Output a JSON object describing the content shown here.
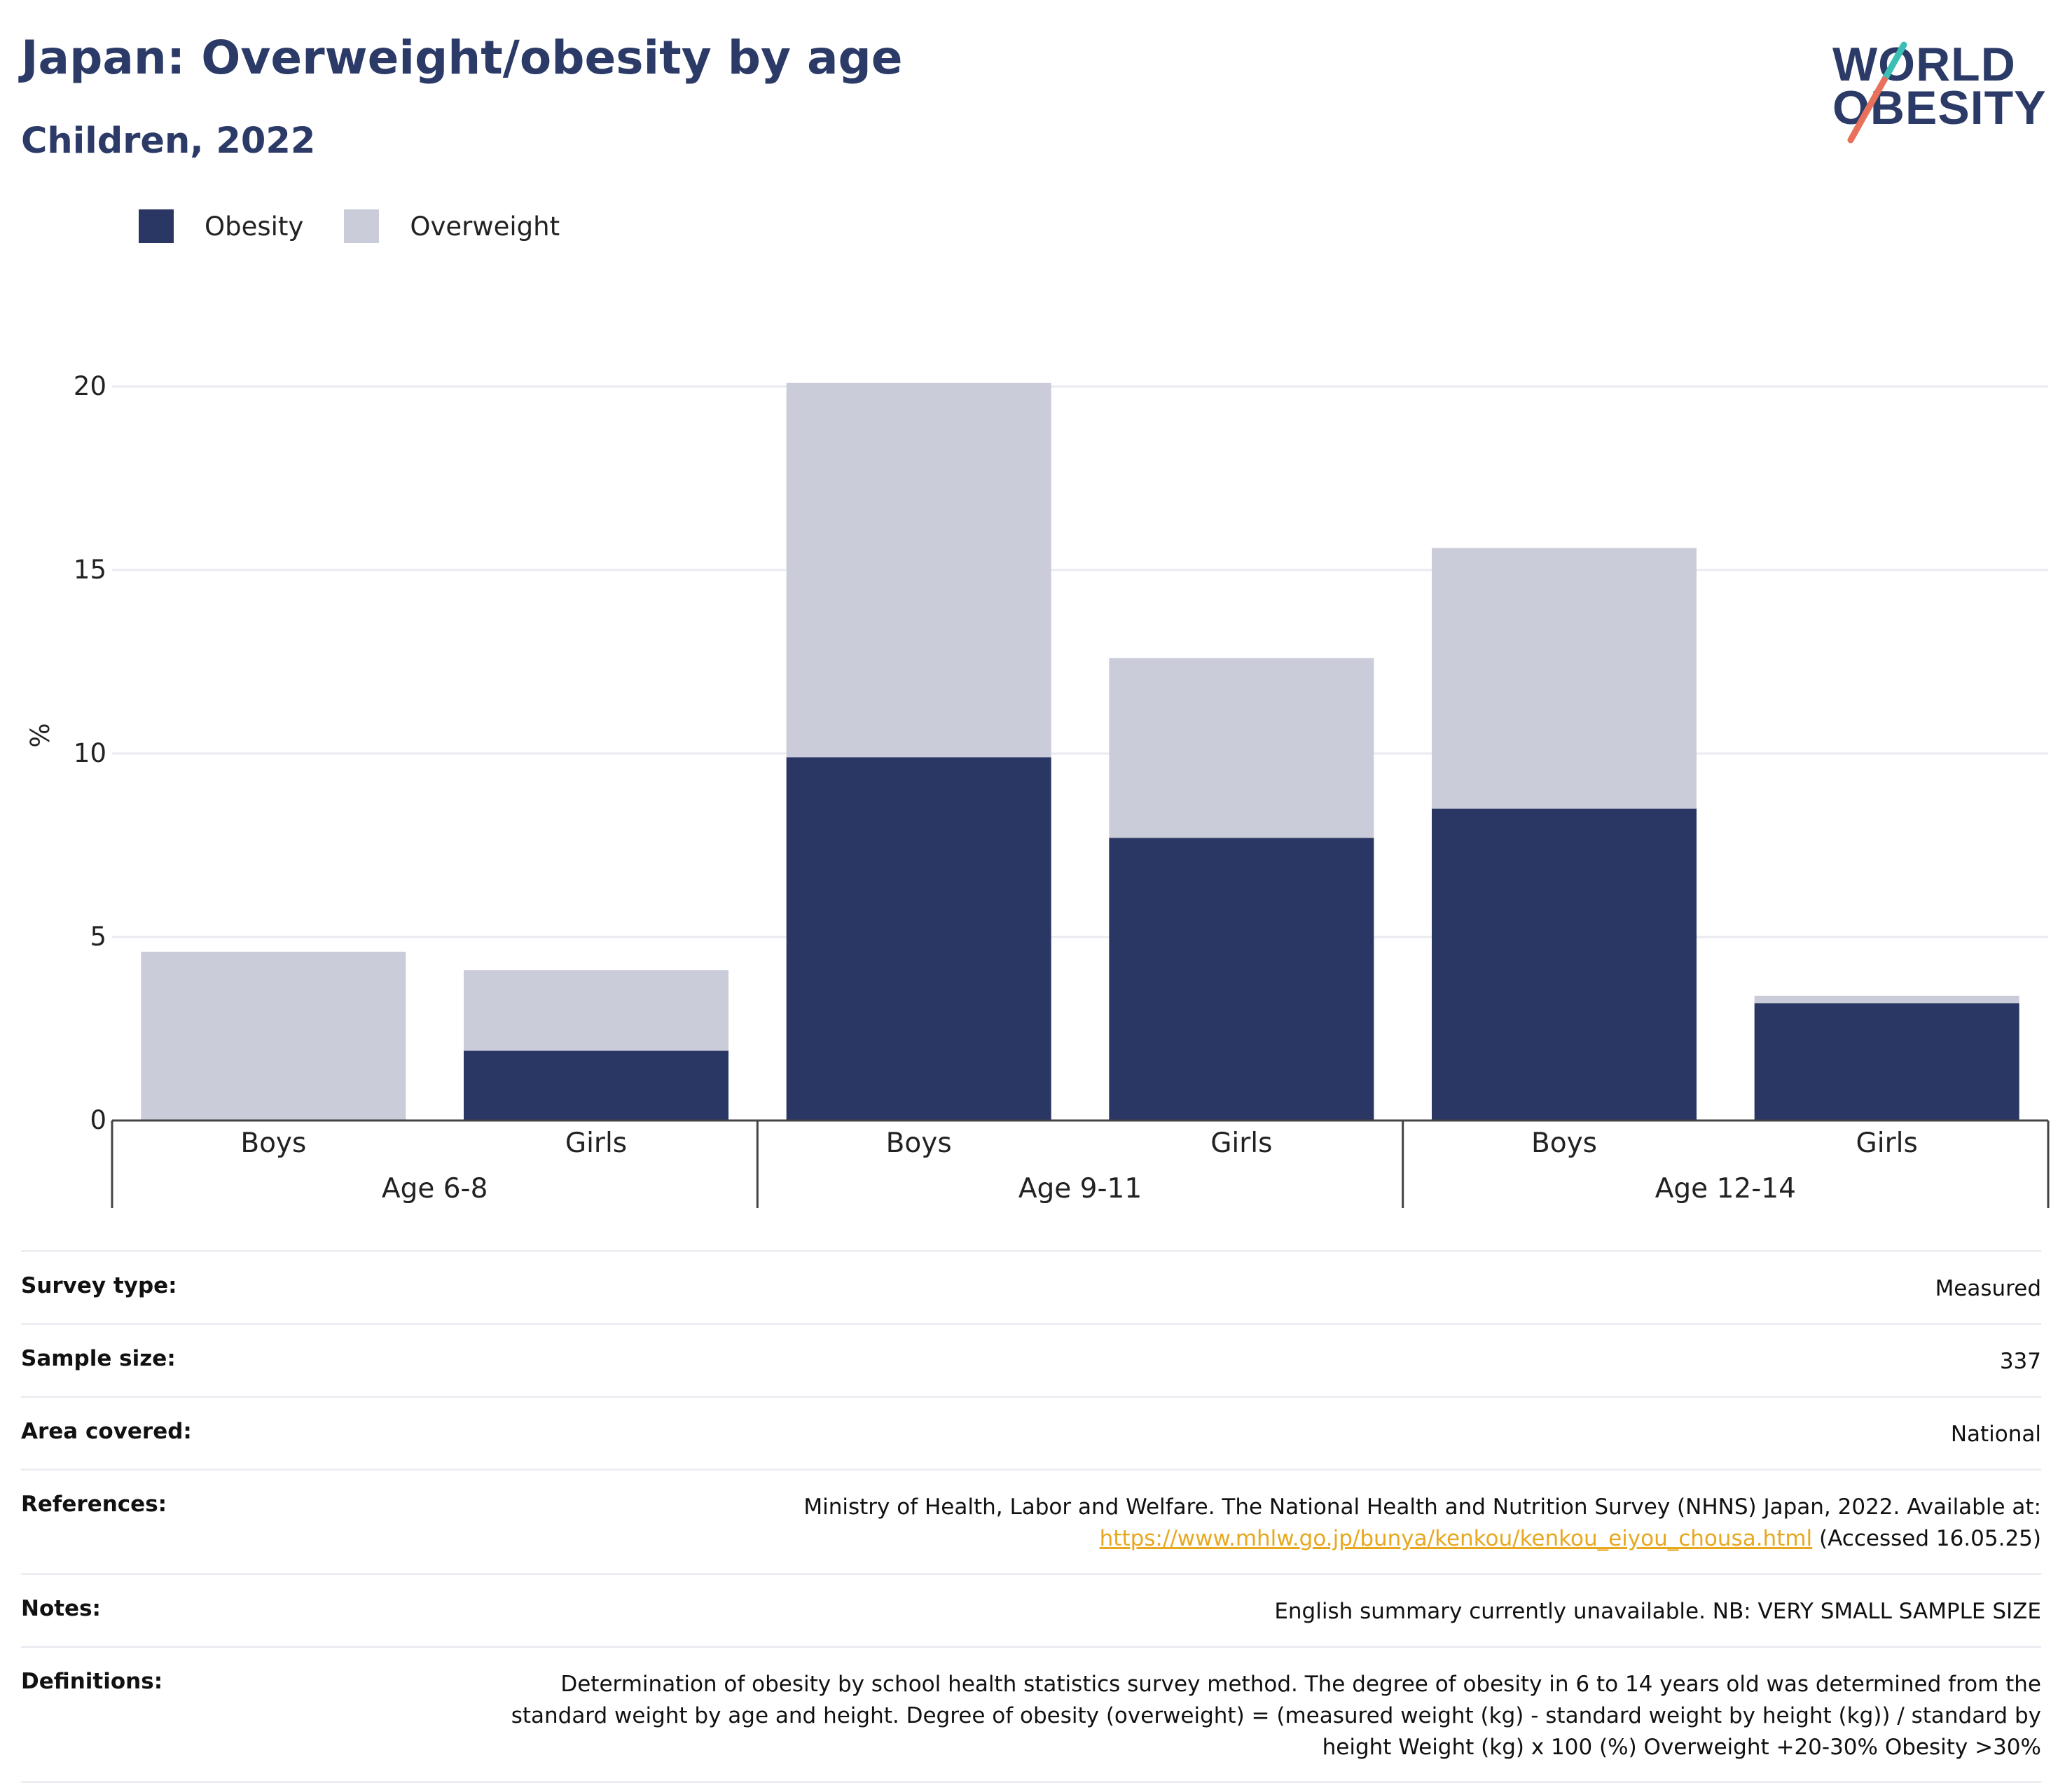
{
  "header": {
    "title": "Japan: Overweight/obesity by age",
    "subtitle": "Children, 2022"
  },
  "logo": {
    "line1": "WORLD",
    "line2": "OBESITY"
  },
  "legend": [
    {
      "label": "Obesity",
      "color": "#2a3663"
    },
    {
      "label": "Overweight",
      "color": "#cacdd9"
    }
  ],
  "chart_data": {
    "type": "bar",
    "stacked": true,
    "ylabel": "%",
    "ylim": [
      0,
      21
    ],
    "yticks": [
      0,
      5,
      10,
      15,
      20
    ],
    "grid": true,
    "legend_position": "top-left",
    "groups": [
      "Age 6-8",
      "Age 9-11",
      "Age 12-14"
    ],
    "categories": [
      "Boys",
      "Girls",
      "Boys",
      "Girls",
      "Boys",
      "Girls"
    ],
    "category_group": [
      "Age 6-8",
      "Age 6-8",
      "Age 9-11",
      "Age 9-11",
      "Age 12-14",
      "Age 12-14"
    ],
    "series": [
      {
        "name": "Obesity",
        "color": "#2a3663",
        "values": [
          0,
          1.9,
          9.9,
          7.7,
          8.5,
          3.2
        ]
      },
      {
        "name": "Overweight",
        "color": "#cacdd9",
        "values": [
          4.6,
          2.2,
          10.2,
          4.9,
          7.1,
          0.2
        ]
      }
    ]
  },
  "info": [
    {
      "label": "Survey type:",
      "value": "Measured"
    },
    {
      "label": "Sample size:",
      "value": "337"
    },
    {
      "label": "Area covered:",
      "value": "National"
    },
    {
      "label": "References:",
      "value": "Ministry of Health, Labor and Welfare. The National Health and Nutrition Survey (NHNS) Japan, 2022. Available at:",
      "link": "https://www.mhlw.go.jp/bunya/kenkou/kenkou_eiyou_chousa.html",
      "suffix": "(Accessed 16.05.25)"
    },
    {
      "label": "Notes:",
      "value": "English summary currently unavailable. NB: VERY SMALL SAMPLE SIZE"
    },
    {
      "label": "Definitions:",
      "value": "Determination of obesity by school health statistics survey method. The degree of obesity in 6 to 14 years old was determined from the standard weight by age and height. Degree of obesity (overweight) = (measured weight (kg) - standard weight by height (kg)) / standard by height Weight (kg) x 100 (%) Overweight +20-30% Obesity >30%"
    }
  ]
}
